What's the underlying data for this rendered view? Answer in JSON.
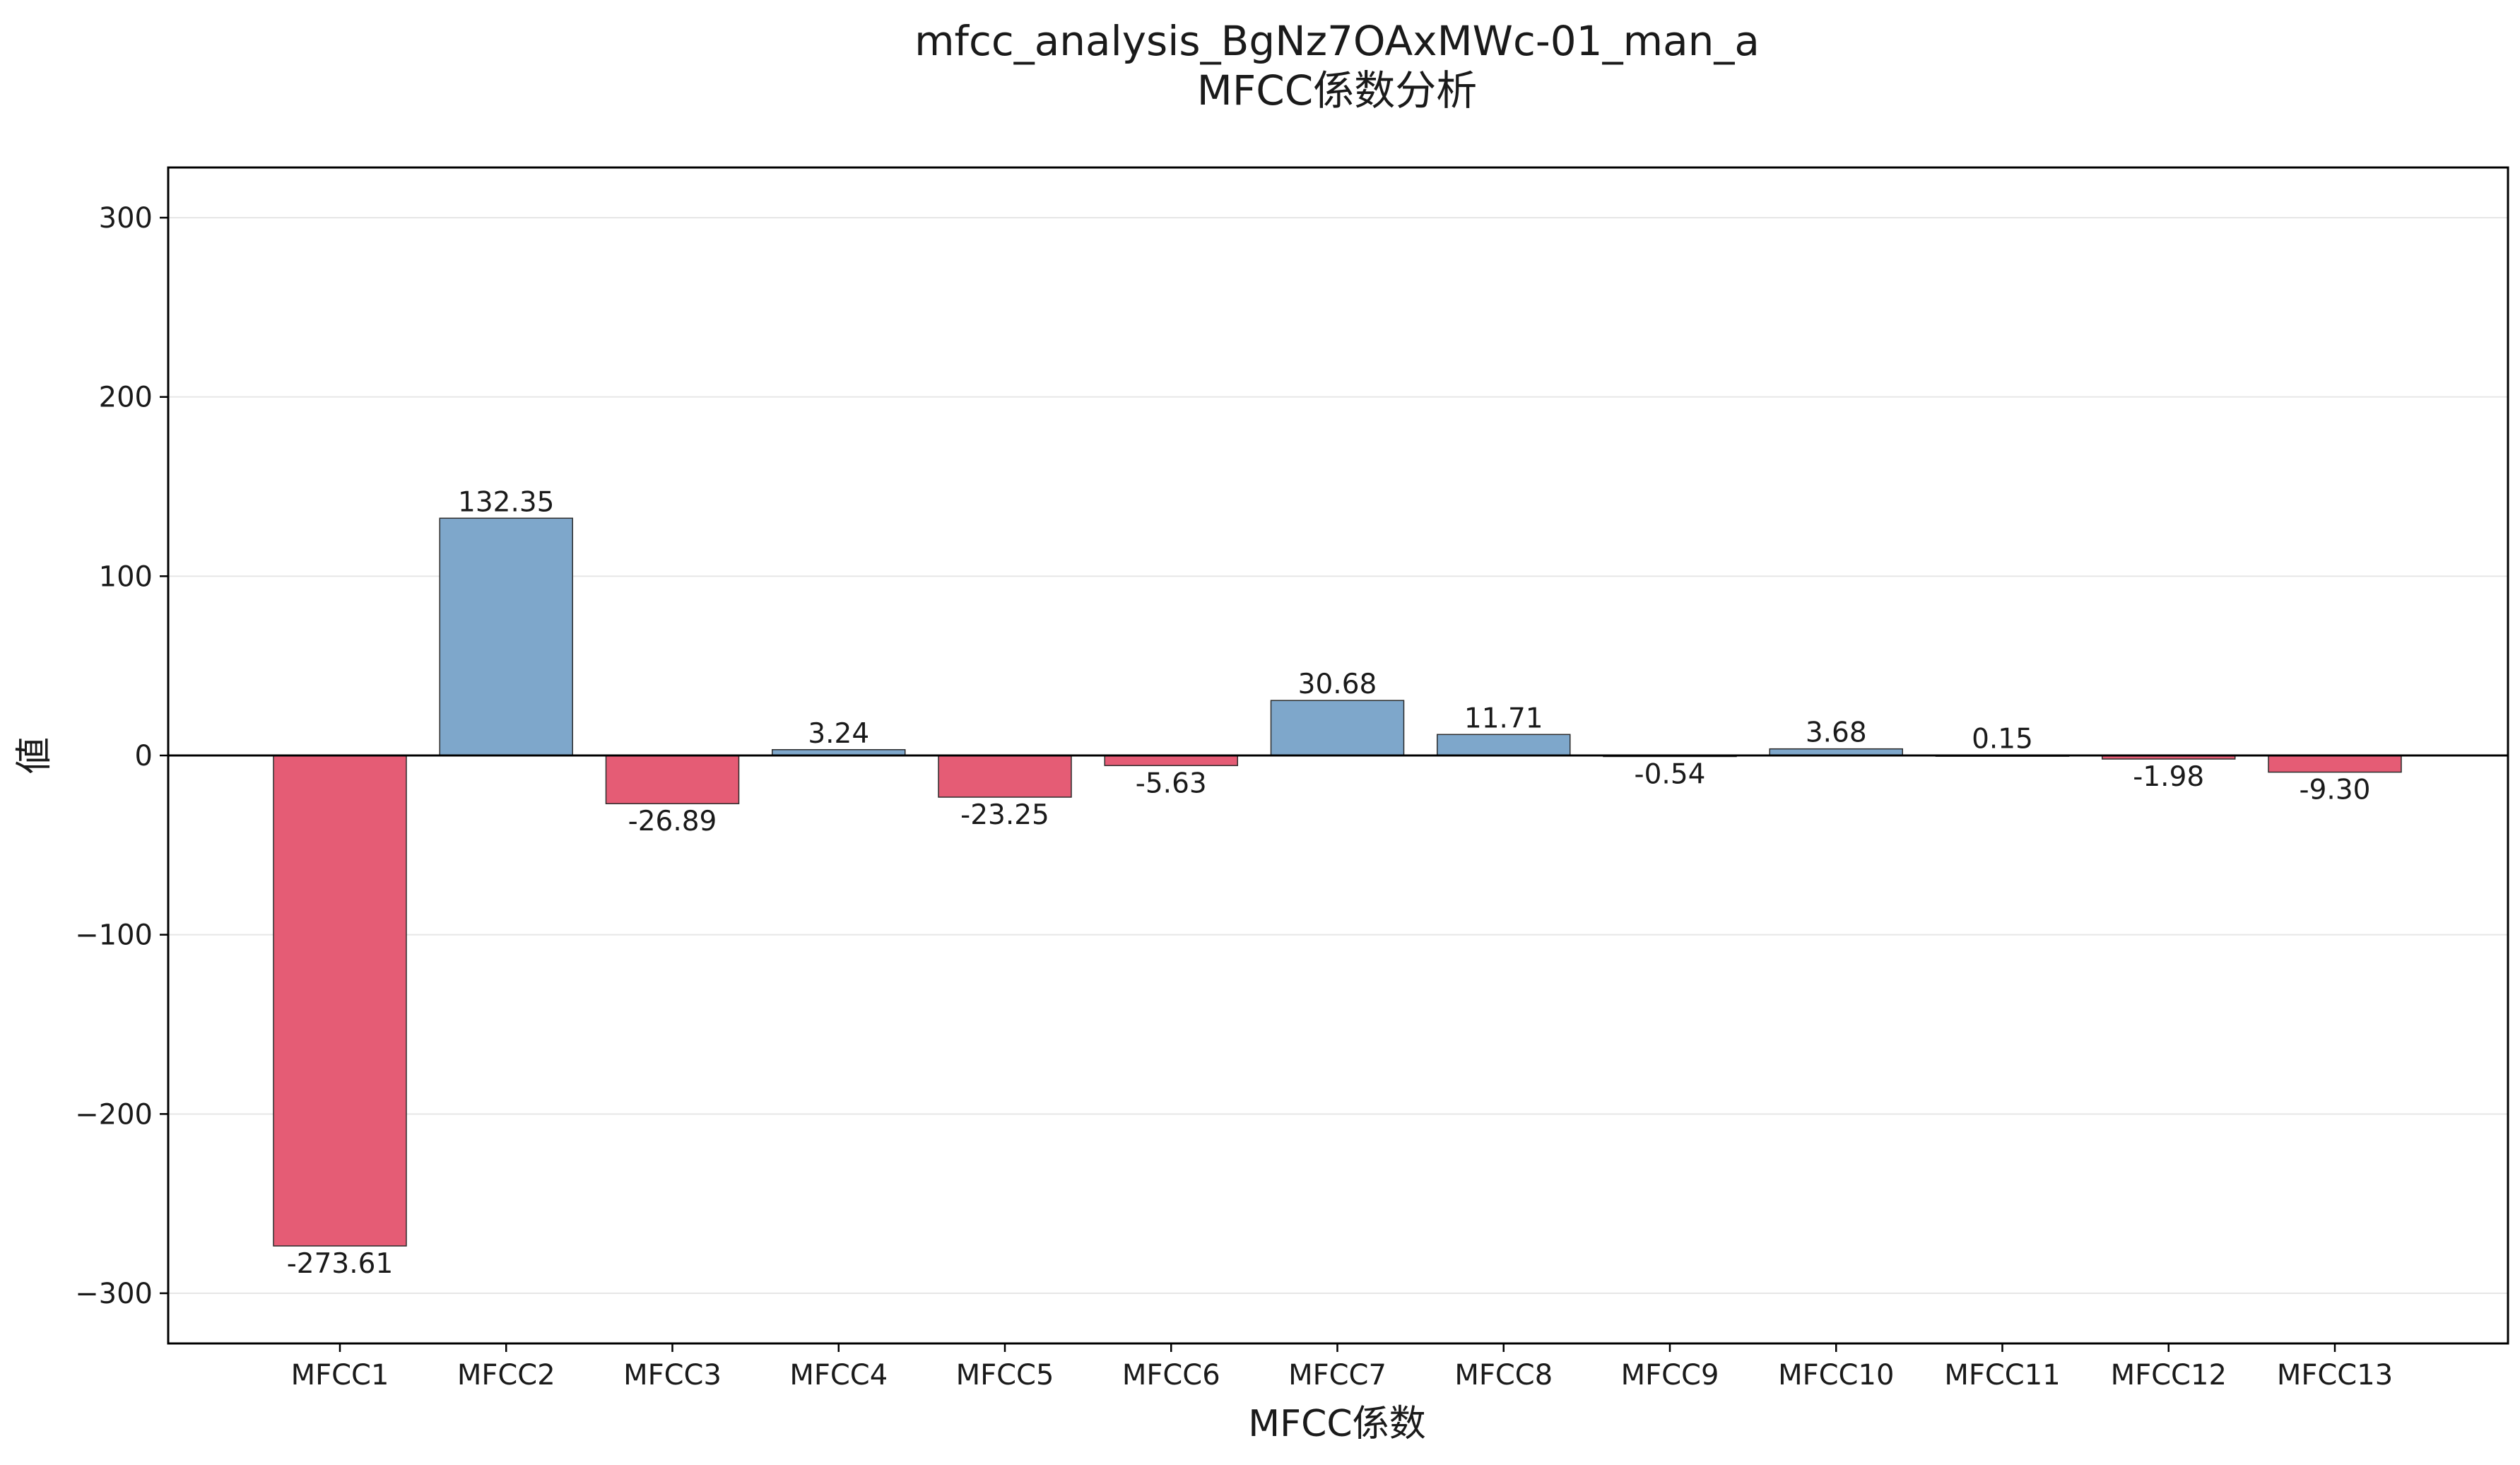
{
  "chart_data": {
    "type": "bar",
    "title": "mfcc_analysis_BgNz7OAxMWc-01_man_a",
    "subtitle": "MFCC係数分析",
    "xlabel": "MFCC係数",
    "ylabel": "値",
    "categories": [
      "MFCC1",
      "MFCC2",
      "MFCC3",
      "MFCC4",
      "MFCC5",
      "MFCC6",
      "MFCC7",
      "MFCC8",
      "MFCC9",
      "MFCC10",
      "MFCC11",
      "MFCC12",
      "MFCC13"
    ],
    "values": [
      -273.61,
      132.35,
      -26.89,
      3.24,
      -23.25,
      -5.63,
      30.68,
      11.71,
      -0.54,
      3.68,
      0.15,
      -1.98,
      -9.3
    ],
    "value_labels": [
      "-273.61",
      "132.35",
      "-26.89",
      "3.24",
      "-23.25",
      "-5.63",
      "30.68",
      "11.71",
      "-0.54",
      "3.68",
      "0.15",
      "-1.98",
      "-9.30"
    ],
    "ylim": [
      -328,
      328
    ],
    "yticks": [
      -300,
      -200,
      -100,
      0,
      100,
      200,
      300
    ],
    "ytick_labels": [
      "−300",
      "−200",
      "−100",
      "0",
      "100",
      "200",
      "300"
    ],
    "grid": "horizontal",
    "colors": {
      "positive": "#7ea7cb",
      "negative": "#e55c75",
      "bar_edge": "#2b2b2b",
      "grid": "#e6e6e6",
      "zero_line": "#000000"
    }
  }
}
